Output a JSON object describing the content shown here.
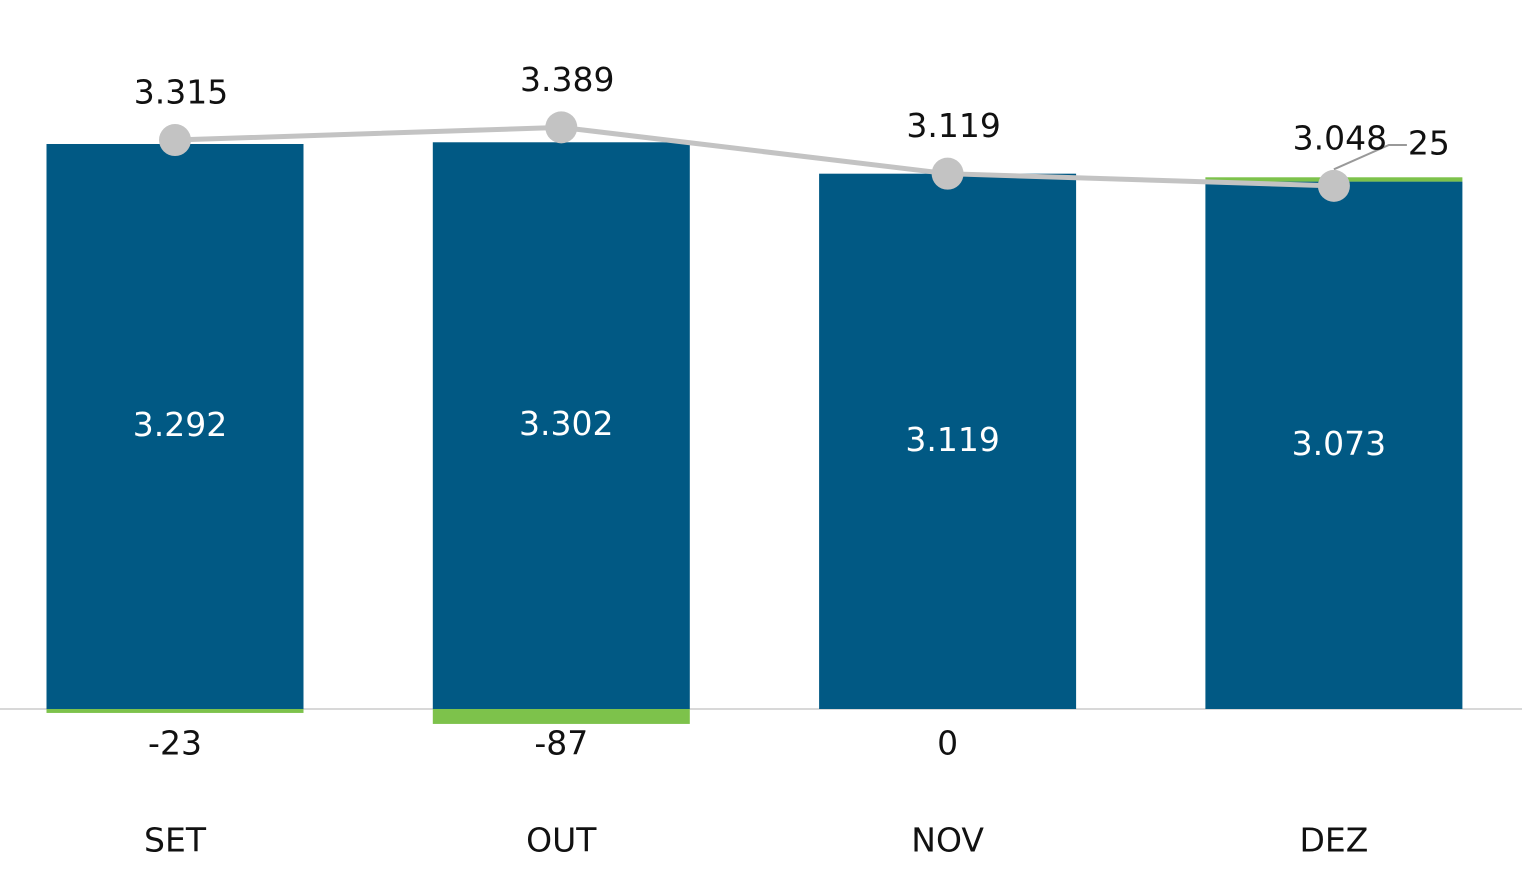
{
  "chart_data": {
    "type": "bar",
    "stacked": true,
    "categories": [
      "SET",
      "OUT",
      "NOV",
      "DEZ"
    ],
    "ylim": [
      -1043,
      4131
    ],
    "series": [
      {
        "type": "bar",
        "color": "#015984",
        "values": [
          3292,
          3302,
          3119,
          3073
        ],
        "value_labels": [
          "3.292",
          "3.302",
          "3.119",
          "3.073"
        ]
      },
      {
        "type": "bar",
        "color": "#7dc24b",
        "values": [
          -23,
          -87,
          0,
          25
        ]
      },
      {
        "type": "line",
        "color": "#c3c3c3",
        "values": [
          3315,
          3389,
          3119,
          3048
        ],
        "value_labels": [
          "3.315",
          "3.389",
          "3.119",
          "3.048"
        ]
      }
    ]
  }
}
